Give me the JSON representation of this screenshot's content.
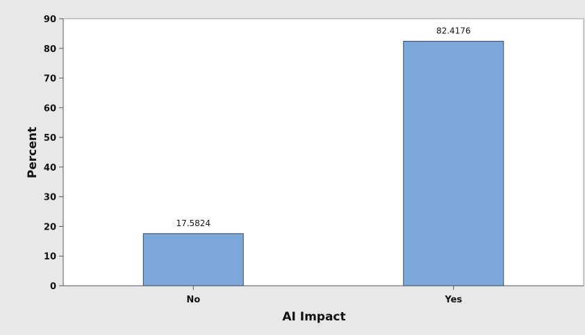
{
  "chart_data": {
    "type": "bar",
    "title": "",
    "xlabel": "AI Impact",
    "ylabel": "Percent",
    "categories": [
      "No",
      "Yes"
    ],
    "values": [
      17.5824,
      82.4176
    ],
    "value_labels": [
      "17.5824",
      "82.4176"
    ],
    "ylim": [
      0,
      90
    ],
    "yticks": [
      0,
      10,
      20,
      30,
      40,
      50,
      60,
      70,
      80,
      90
    ],
    "grid": false,
    "legend": "none",
    "colors": {
      "bar_fill": "#7da7d9",
      "bar_stroke": "#3b4a5c",
      "plot_bg": "#ffffff",
      "frame_bg": "#e8e8e8",
      "axis": "#555555"
    }
  }
}
